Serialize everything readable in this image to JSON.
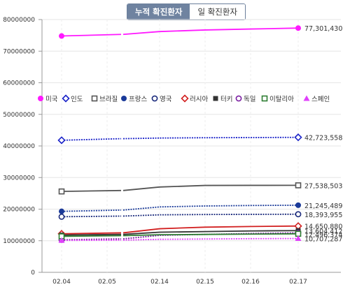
{
  "toggle": {
    "cumulative_label": "누적 확진환자",
    "daily_label": "일 확진환자",
    "active": "cumulative"
  },
  "chart_data": {
    "type": "line",
    "categories": [
      "02.04",
      "02.05",
      "02.14",
      "02.15",
      "02.16",
      "02.17"
    ],
    "yticks": [
      "0",
      "10000000",
      "20000000",
      "30000000",
      "40000000",
      "50000000",
      "60000000",
      "70000000",
      "80000000"
    ],
    "ylim": [
      0,
      80000000
    ],
    "grid": true,
    "legend_position": "middle, inside plot",
    "series": [
      {
        "name": "미국",
        "color": "#ff19ff",
        "marker": "circle-filled",
        "line": "solid",
        "start": 74800000,
        "values": [
          74800000,
          75300000,
          76200000,
          76700000,
          77000000,
          77301430
        ],
        "end_label": "77,301,430"
      },
      {
        "name": "인도",
        "color": "#1a22c8",
        "marker": "diamond-open",
        "line": "dotted",
        "start": 41800000,
        "values": [
          41800000,
          42300000,
          42500000,
          42600000,
          42650000,
          42723558
        ],
        "end_label": "42,723,558"
      },
      {
        "name": "브라질",
        "color": "#555555",
        "marker": "square-open",
        "line": "solid",
        "start": 25600000,
        "values": [
          25600000,
          25900000,
          27000000,
          27500000,
          27530000,
          27538503
        ],
        "end_label": "27,538,503"
      },
      {
        "name": "프랑스",
        "color": "#1a3a99",
        "marker": "circle-filled",
        "line": "dotted",
        "start": 19300000,
        "values": [
          19300000,
          19700000,
          20700000,
          21000000,
          21150000,
          21245489
        ],
        "end_label": "21,245,489"
      },
      {
        "name": "영국",
        "color": "#1a2a7c",
        "marker": "circle-open",
        "line": "dotted",
        "start": 17600000,
        "values": [
          17600000,
          17800000,
          18200000,
          18300000,
          18350000,
          18393955
        ],
        "end_label": "18,393,955"
      },
      {
        "name": "러시아",
        "color": "#d22020",
        "marker": "diamond-open",
        "line": "solid",
        "start": 12200000,
        "values": [
          12200000,
          12500000,
          13800000,
          14300000,
          14500000,
          14650000
        ],
        "end_label": "14,650,880"
      },
      {
        "name": "터키",
        "color": "#333333",
        "marker": "square-filled",
        "line": "solid",
        "start": 11800000,
        "values": [
          11800000,
          12000000,
          12700000,
          12900000,
          13100000,
          13200000
        ],
        "end_label": ""
      },
      {
        "name": "독일",
        "color": "#7b1fa2",
        "marker": "circle-open",
        "line": "dotted",
        "start": 10300000,
        "values": [
          10300000,
          10600000,
          11700000,
          12000000,
          12300000,
          12500000
        ],
        "end_label": ""
      },
      {
        "name": "이탈리아",
        "color": "#2e7d32",
        "marker": "square-open",
        "line": "solid",
        "start": 11400000,
        "values": [
          11400000,
          11600000,
          11900000,
          12000000,
          12100000,
          12200000
        ],
        "end_label": ""
      },
      {
        "name": "스페인",
        "color": "#e040fb",
        "marker": "triangle-filled",
        "line": "dotted",
        "start": 10100000,
        "values": [
          10100000,
          10200000,
          10450000,
          10550000,
          10650000,
          10707287
        ],
        "end_label": "10,707,287"
      }
    ],
    "overlapping_labels": [
      "13,604,412",
      "12,496,374"
    ]
  }
}
